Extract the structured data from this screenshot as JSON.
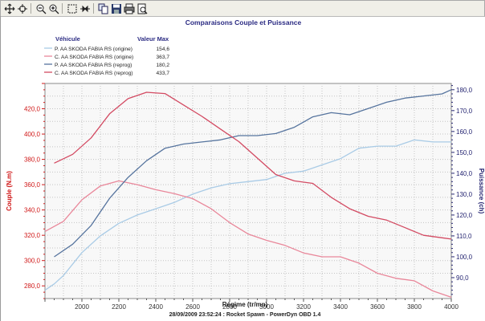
{
  "toolbar": {
    "icons": [
      "move-icon",
      "crosshair-icon",
      "zoom-out-icon",
      "zoom-in-icon",
      "select-box-icon",
      "fit-icon",
      "copy-icon",
      "save-icon",
      "print-icon",
      "preview-icon"
    ]
  },
  "colors": {
    "torque_axis": "#d01818",
    "power_axis": "#262672",
    "p_origine": "#a9cbe6",
    "c_origine": "#e9879a",
    "p_reprog": "#56749e",
    "c_reprog": "#d34a62",
    "title": "#2b2b83"
  },
  "chart_data": {
    "type": "line",
    "title": "Comparaisons Couple et Puissance",
    "xlabel": "Régime (tr/mn)",
    "ylabel_left": "Couple (N.m)",
    "ylabel_right": "Puissance (ch)",
    "footer": "28/09/2009 23:52:24 : Rocket Spawn - PowerDyn OBD 1.4",
    "legend_header": {
      "name": "Véhicule",
      "value": "Valeur Max"
    },
    "legend_position": "top-left",
    "grid": true,
    "xlim": [
      1800,
      4000
    ],
    "ylim_left": [
      270,
      440
    ],
    "ylim_right": [
      80,
      183
    ],
    "x_ticks": [
      "2000",
      "2200",
      "2400",
      "2600",
      "2800",
      "3000",
      "3200",
      "3400",
      "3600",
      "3800",
      "4000"
    ],
    "left_ticks": [
      "280,0",
      "300,0",
      "320,0",
      "340,0",
      "360,0",
      "380,0",
      "400,0",
      "420,0"
    ],
    "right_ticks": [
      "90,0",
      "100,0",
      "110,0",
      "120,0",
      "130,0",
      "140,0",
      "150,0",
      "160,0",
      "170,0",
      "180,0"
    ],
    "series": [
      {
        "name": "P. AA SKODA FABIA RS (origine)",
        "max": "154,6",
        "axis": "right",
        "x": [
          1800,
          1850,
          1900,
          2000,
          2100,
          2200,
          2300,
          2400,
          2500,
          2600,
          2700,
          2800,
          2900,
          3000,
          3100,
          3200,
          3300,
          3400,
          3500,
          3600,
          3700,
          3800,
          3900,
          4000
        ],
        "values": [
          84,
          87,
          91,
          102,
          110,
          116,
          120,
          123,
          126,
          130,
          133,
          135,
          136,
          137,
          140,
          141,
          144,
          147,
          152,
          153,
          153,
          156,
          155,
          155
        ]
      },
      {
        "name": "C. AA SKODA FABIA RS (origine)",
        "max": "363,7",
        "axis": "left",
        "x": [
          1800,
          1900,
          2000,
          2100,
          2200,
          2300,
          2400,
          2500,
          2600,
          2700,
          2800,
          2900,
          3000,
          3100,
          3200,
          3300,
          3400,
          3500,
          3600,
          3700,
          3800,
          3900,
          4000
        ],
        "values": [
          323,
          331,
          348,
          359,
          363,
          360,
          356,
          353,
          349,
          341,
          330,
          321,
          316,
          312,
          306,
          303,
          303,
          298,
          290,
          286,
          284,
          276,
          271
        ]
      },
      {
        "name": "P. AA SKODA FABIA RS (reprog)",
        "max": "180,2",
        "axis": "right",
        "x": [
          1850,
          1950,
          2050,
          2150,
          2250,
          2350,
          2450,
          2550,
          2650,
          2750,
          2850,
          2950,
          3050,
          3150,
          3250,
          3350,
          3450,
          3550,
          3650,
          3750,
          3850,
          3950,
          4000
        ],
        "values": [
          100,
          106,
          115,
          128,
          138,
          146,
          152,
          154,
          155,
          156,
          158,
          158,
          159,
          162,
          167,
          169,
          168,
          171,
          174,
          176,
          177,
          178,
          180
        ]
      },
      {
        "name": "C. AA SKODA FABIA RS (reprog)",
        "max": "433,7",
        "axis": "left",
        "x": [
          1850,
          1950,
          2050,
          2150,
          2250,
          2350,
          2450,
          2550,
          2650,
          2750,
          2850,
          2950,
          3050,
          3150,
          3250,
          3350,
          3450,
          3550,
          3650,
          3750,
          3850,
          3950,
          4000
        ],
        "values": [
          377,
          384,
          397,
          416,
          428,
          433,
          432,
          423,
          414,
          404,
          394,
          381,
          368,
          363,
          361,
          350,
          341,
          335,
          332,
          326,
          320,
          318,
          317
        ]
      }
    ]
  }
}
